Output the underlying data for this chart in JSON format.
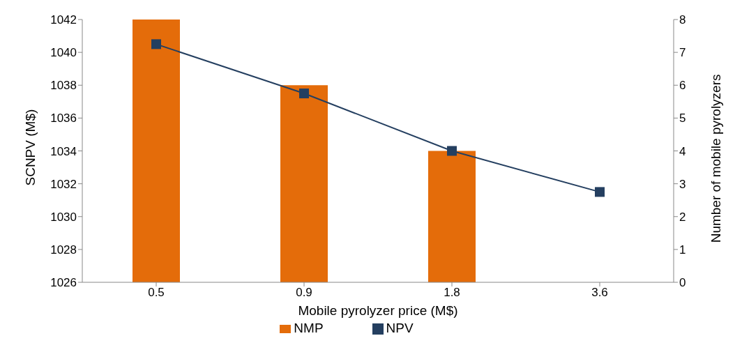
{
  "chart_data": {
    "type": "bar",
    "xlabel": "Mobile pyrolyzer price (M$)",
    "ylabel": "SCNPV (M$)",
    "y2label": "Number of mobile pyrolyzers",
    "categories": [
      "0.5",
      "0.9",
      "1.8",
      "3.6"
    ],
    "series": [
      {
        "name": "NMP",
        "axis": "y2",
        "color": "#e46c0a",
        "values": [
          8,
          6,
          4,
          0
        ]
      },
      {
        "name": "NPV",
        "type": "line",
        "color": "#243f60",
        "values": [
          1040.5,
          1037.5,
          1034,
          1031.5
        ]
      }
    ],
    "ylim": [
      1026,
      1042
    ],
    "yticks": [
      1026,
      1028,
      1030,
      1032,
      1034,
      1036,
      1038,
      1040,
      1042
    ],
    "y2lim": [
      0,
      8
    ],
    "y2ticks": [
      0,
      1,
      2,
      3,
      4,
      5,
      6,
      7,
      8
    ],
    "marker": "square",
    "legend": "bottom",
    "grid": false
  }
}
